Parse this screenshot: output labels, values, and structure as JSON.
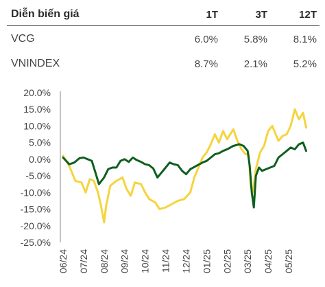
{
  "table": {
    "header": {
      "label": "Diễn biến giá",
      "cols": [
        "1T",
        "3T",
        "12T"
      ]
    },
    "rows": [
      {
        "name": "VCG",
        "values": [
          "6.0%",
          "5.8%",
          "8.1%"
        ]
      },
      {
        "name": "VNINDEX",
        "values": [
          "8.7%",
          "2.1%",
          "5.2%"
        ]
      }
    ]
  },
  "chart_data": {
    "type": "line",
    "title": "",
    "xlabel": "",
    "ylabel": "",
    "ylim": [
      -25,
      20
    ],
    "y_ticks": [
      20,
      15,
      10,
      5,
      0,
      -5,
      -10,
      -15,
      -20,
      -25
    ],
    "y_tick_labels": [
      "20.0%",
      "15.0%",
      "10.0%",
      "5.0%",
      "0.0%",
      "-5.0%",
      "-10.0%",
      "-15.0%",
      "-20.0%",
      "-25.0%"
    ],
    "x_tick_labels": [
      "06/24",
      "07/24",
      "08/24",
      "09/24",
      "10/24",
      "11/24",
      "12/24",
      "01/25",
      "02/25",
      "03/25",
      "04/25",
      "05/25"
    ],
    "grid": false,
    "legend": "none",
    "series": [
      {
        "color": "#f5d440",
        "points": [
          [
            "06/24",
            1.0
          ],
          [
            0.3,
            -2.0
          ],
          [
            0.6,
            -6.5
          ],
          [
            0.9,
            -7.0
          ],
          [
            1.1,
            -10.0
          ],
          [
            1.3,
            -6.0
          ],
          [
            1.5,
            -6.5
          ],
          [
            1.7,
            -10.0
          ],
          [
            1.85,
            -14.0
          ],
          [
            2.0,
            -19.0
          ],
          [
            2.1,
            -14.0
          ],
          [
            2.3,
            -8.0
          ],
          [
            2.6,
            -6.5
          ],
          [
            2.9,
            -5.5
          ],
          [
            3.1,
            -9.0
          ],
          [
            3.3,
            -11.0
          ],
          [
            3.5,
            -7.0
          ],
          [
            3.8,
            -7.5
          ],
          [
            4.0,
            -10.0
          ],
          [
            4.2,
            -12.0
          ],
          [
            4.5,
            -13.0
          ],
          [
            4.7,
            -15.0
          ],
          [
            5.0,
            -14.5
          ],
          [
            5.3,
            -13.5
          ],
          [
            5.6,
            -12.5
          ],
          [
            5.9,
            -12.0
          ],
          [
            6.2,
            -10.0
          ],
          [
            6.4,
            -5.5
          ],
          [
            6.6,
            -2.5
          ],
          [
            6.8,
            0.5
          ],
          [
            7.0,
            2.0
          ],
          [
            7.2,
            4.5
          ],
          [
            7.4,
            7.5
          ],
          [
            7.6,
            5.0
          ],
          [
            7.8,
            8.5
          ],
          [
            8.0,
            6.0
          ],
          [
            8.3,
            9.0
          ],
          [
            8.5,
            5.5
          ],
          [
            8.7,
            3.0
          ],
          [
            8.9,
            1.5
          ],
          [
            9.05,
            1.5
          ],
          [
            9.15,
            -8.0
          ],
          [
            9.25,
            -10.0
          ],
          [
            9.4,
            -3.0
          ],
          [
            9.6,
            2.0
          ],
          [
            9.8,
            4.0
          ],
          [
            10.0,
            8.5
          ],
          [
            10.2,
            10.0
          ],
          [
            10.5,
            5.5
          ],
          [
            10.7,
            7.0
          ],
          [
            10.9,
            7.5
          ],
          [
            11.1,
            10.0
          ],
          [
            11.3,
            15.0
          ],
          [
            11.5,
            12.0
          ],
          [
            11.7,
            14.0
          ],
          [
            11.85,
            9.5
          ]
        ]
      },
      {
        "color": "#0f5f1f",
        "points": [
          [
            "06/24",
            0.5
          ],
          [
            0.3,
            -1.5
          ],
          [
            0.55,
            -1.0
          ],
          [
            0.8,
            0.3
          ],
          [
            1.0,
            0.5
          ],
          [
            1.2,
            0.0
          ],
          [
            1.4,
            -0.5
          ],
          [
            1.55,
            -3.5
          ],
          [
            1.75,
            -7.5
          ],
          [
            2.0,
            -5.5
          ],
          [
            2.2,
            -3.0
          ],
          [
            2.4,
            -2.5
          ],
          [
            2.6,
            -2.5
          ],
          [
            2.8,
            -0.5
          ],
          [
            3.0,
            0.0
          ],
          [
            3.2,
            -0.8
          ],
          [
            3.4,
            0.5
          ],
          [
            3.6,
            -0.3
          ],
          [
            3.8,
            -0.8
          ],
          [
            4.0,
            -1.5
          ],
          [
            4.2,
            -1.8
          ],
          [
            4.4,
            -2.8
          ],
          [
            4.6,
            -5.5
          ],
          [
            4.8,
            -4.0
          ],
          [
            5.0,
            -2.5
          ],
          [
            5.2,
            -1.0
          ],
          [
            5.4,
            -1.5
          ],
          [
            5.6,
            -1.8
          ],
          [
            5.8,
            -3.5
          ],
          [
            6.0,
            -4.5
          ],
          [
            6.2,
            -3.0
          ],
          [
            6.5,
            -2.0
          ],
          [
            6.8,
            -1.0
          ],
          [
            7.0,
            -0.5
          ],
          [
            7.2,
            0.5
          ],
          [
            7.4,
            1.5
          ],
          [
            7.6,
            1.8
          ],
          [
            7.8,
            2.5
          ],
          [
            8.0,
            3.0
          ],
          [
            8.3,
            4.0
          ],
          [
            8.6,
            4.5
          ],
          [
            8.8,
            4.0
          ],
          [
            9.0,
            2.5
          ],
          [
            9.1,
            -2.0
          ],
          [
            9.2,
            -10.0
          ],
          [
            9.3,
            -14.5
          ],
          [
            9.4,
            -5.0
          ],
          [
            9.55,
            -2.5
          ],
          [
            9.7,
            -3.5
          ],
          [
            9.9,
            -3.0
          ],
          [
            10.1,
            -2.5
          ],
          [
            10.3,
            -2.0
          ],
          [
            10.5,
            0.5
          ],
          [
            10.7,
            1.5
          ],
          [
            10.9,
            2.5
          ],
          [
            11.1,
            3.5
          ],
          [
            11.3,
            3.0
          ],
          [
            11.5,
            4.5
          ],
          [
            11.7,
            5.0
          ],
          [
            11.85,
            2.5
          ]
        ]
      }
    ]
  }
}
